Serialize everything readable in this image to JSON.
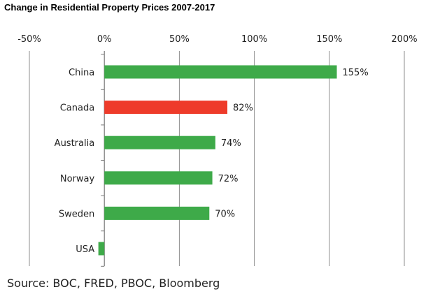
{
  "title": "Change in Residential Property Prices 2007-2017",
  "source": "Source: BOC, FRED, PBOC, Bloomberg",
  "chart_data": {
    "type": "bar",
    "orientation": "horizontal",
    "title": "Change in Residential Property Prices 2007-2017",
    "categories": [
      "China",
      "Canada",
      "Australia",
      "Norway",
      "Sweden",
      "USA"
    ],
    "values": [
      155,
      82,
      74,
      72,
      70,
      -4
    ],
    "data_labels": [
      "155%",
      "82%",
      "74%",
      "72%",
      "70%",
      ""
    ],
    "colors": [
      "#3eaa49",
      "#ee3b2a",
      "#3eaa49",
      "#3eaa49",
      "#3eaa49",
      "#3eaa49"
    ],
    "xlim": [
      -50,
      200
    ],
    "xticks": [
      -50,
      0,
      50,
      100,
      150,
      200
    ],
    "xtick_labels": [
      "-50%",
      "0%",
      "50%",
      "100%",
      "150%",
      "200%"
    ],
    "axis_position": "top",
    "grid": "vertical"
  }
}
